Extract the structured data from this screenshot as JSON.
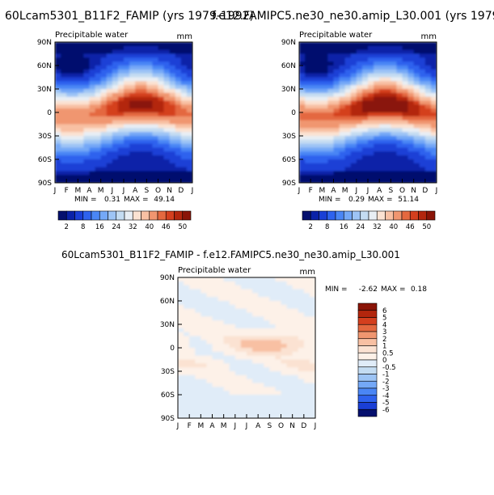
{
  "chart_data": [
    {
      "type": "heatmap",
      "title": "60Lcam5301_B11F2_FAMIP (yrs 1979-1992)",
      "subtitle": "Precipitable water",
      "units": "mm",
      "x_ticks": [
        "J",
        "F",
        "M",
        "A",
        "M",
        "J",
        "J",
        "A",
        "S",
        "O",
        "N",
        "D",
        "J"
      ],
      "y_ticks": [
        "90N",
        "60N",
        "30N",
        "0",
        "30S",
        "60S",
        "90S"
      ],
      "y_range": [
        -90,
        90
      ],
      "months": [
        "J",
        "F",
        "M",
        "A",
        "M",
        "J",
        "J",
        "A",
        "S",
        "O",
        "N",
        "D",
        "J"
      ],
      "min_label": "MIN =",
      "min_value": "0.31",
      "max_label": "MAX =",
      "max_value": "49.14",
      "levels": [
        2,
        4,
        8,
        12,
        16,
        20,
        24,
        28,
        32,
        36,
        40,
        44,
        46,
        48,
        50
      ],
      "legend_labels": [
        "2",
        "8",
        "16",
        "24",
        "32",
        "40",
        "46",
        "50"
      ],
      "colorscale": [
        "#05106e",
        "#0a22a8",
        "#1a3fd6",
        "#2e62ee",
        "#4a86f5",
        "#74a8f7",
        "#9dc4f5",
        "#c4dcf2",
        "#e8eef4",
        "#fbe2d2",
        "#f8c0a3",
        "#f09670",
        "#e4683f",
        "#d43f1e",
        "#b3260d",
        "#8a1407"
      ]
    },
    {
      "type": "heatmap",
      "title": "f.e12.FAMIPC5.ne30_ne30.amip_L30.001 (yrs 1979-",
      "subtitle": "Precipitable water",
      "units": "mm",
      "x_ticks": [
        "J",
        "F",
        "M",
        "A",
        "M",
        "J",
        "J",
        "A",
        "S",
        "O",
        "N",
        "D",
        "J"
      ],
      "y_ticks": [
        "90N",
        "60N",
        "30N",
        "0",
        "30S",
        "60S",
        "90S"
      ],
      "y_range": [
        -90,
        90
      ],
      "min_label": "MIN =",
      "min_value": "0.29",
      "max_label": "MAX =",
      "max_value": "51.14",
      "levels": [
        2,
        4,
        8,
        12,
        16,
        20,
        24,
        28,
        32,
        36,
        40,
        44,
        46,
        48,
        50
      ],
      "legend_labels": [
        "2",
        "8",
        "16",
        "24",
        "32",
        "40",
        "46",
        "50"
      ],
      "colorscale": [
        "#05106e",
        "#0a22a8",
        "#1a3fd6",
        "#2e62ee",
        "#4a86f5",
        "#74a8f7",
        "#9dc4f5",
        "#c4dcf2",
        "#e8eef4",
        "#fbe2d2",
        "#f8c0a3",
        "#f09670",
        "#e4683f",
        "#d43f1e",
        "#b3260d",
        "#8a1407"
      ]
    },
    {
      "type": "heatmap",
      "title": "60Lcam5301_B11F2_FAMIP - f.e12.FAMIPC5.ne30_ne30.amip_L30.001",
      "subtitle": "Precipitable water",
      "units": "mm",
      "x_ticks": [
        "J",
        "F",
        "M",
        "A",
        "M",
        "J",
        "J",
        "A",
        "S",
        "O",
        "N",
        "D",
        "J"
      ],
      "y_ticks": [
        "90N",
        "60N",
        "30N",
        "0",
        "30S",
        "60S",
        "90S"
      ],
      "y_range": [
        -90,
        90
      ],
      "min_label": "MIN =",
      "min_value": "-2.62",
      "max_label": "MAX =",
      "max_value": "0.18",
      "levels": [
        -6,
        -5,
        -4,
        -3,
        -2,
        -1,
        -0.5,
        0,
        0.5,
        1,
        2,
        3,
        4,
        5,
        6
      ],
      "legend_labels": [
        "6",
        "5",
        "4",
        "3",
        "2",
        "1",
        "0.5",
        "0",
        "-0.5",
        "-1",
        "-2",
        "-3",
        "-4",
        "-5",
        "-6"
      ],
      "colorscale": [
        "#8a1407",
        "#b3260d",
        "#d43f1e",
        "#e4683f",
        "#f09670",
        "#f8c0a3",
        "#fbe2d2",
        "#fdf1e8",
        "#e0ecf8",
        "#c4dcf2",
        "#9dc4f5",
        "#74a8f7",
        "#4a86f5",
        "#2e62ee",
        "#1a3fd6",
        "#05106e"
      ]
    }
  ]
}
